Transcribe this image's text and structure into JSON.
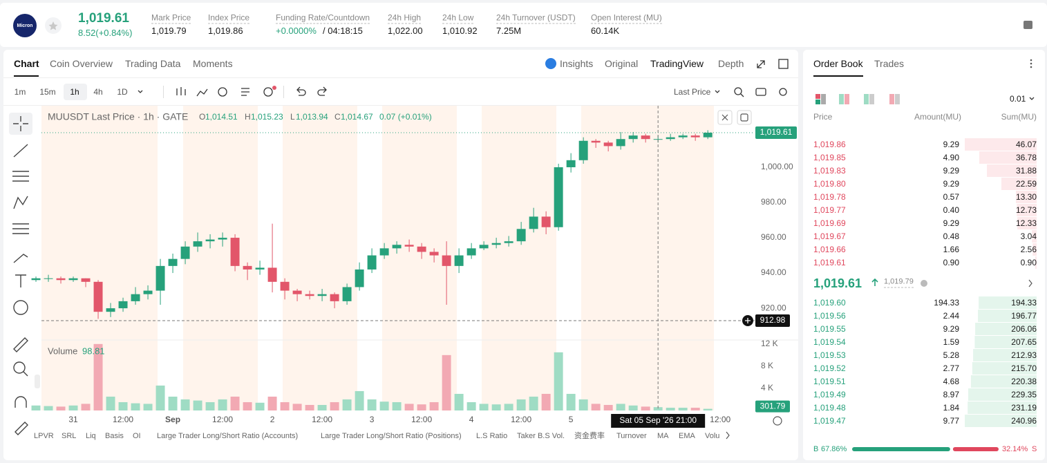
{
  "header": {
    "logo": "Micron",
    "last_price": "1,019.61",
    "change": "8.52(+0.84%)",
    "stats": [
      {
        "label": "Mark Price",
        "value": "1,019.79"
      },
      {
        "label": "Index Price",
        "value": "1,019.86"
      },
      {
        "label": "Funding Rate/Countdown",
        "value": "+0.0000%",
        "countdown": "/ 04:18:15"
      },
      {
        "label": "24h High",
        "value": "1,022.00"
      },
      {
        "label": "24h Low",
        "value": "1,010.92"
      },
      {
        "label": "24h Turnover (USDT)",
        "value": "7.25M"
      },
      {
        "label": "Open Interest (MU)",
        "value": "60.14K"
      }
    ]
  },
  "chart_tabs": [
    "Chart",
    "Coin Overview",
    "Trading Data",
    "Moments"
  ],
  "view_tabs": [
    "Insights",
    "Original",
    "TradingView",
    "Depth"
  ],
  "intervals": [
    "1m",
    "15m",
    "1h",
    "4h",
    "1D"
  ],
  "price_source": "Last Price",
  "chart_data": {
    "type": "candlestick",
    "legend": "MUUSDT Last Price · 1h · GATE",
    "ohlc_legend": [
      {
        "key": "O",
        "value": "1,014.51"
      },
      {
        "key": "H",
        "value": "1,015.23"
      },
      {
        "key": "L",
        "value": "1,013.94"
      },
      {
        "key": "C",
        "value": "1,014.67"
      }
    ],
    "change": "0.07 (+0.01%)",
    "x": [
      -9,
      -6,
      -3,
      0,
      3,
      6,
      9,
      12,
      15,
      18,
      21,
      24,
      27,
      30,
      33,
      36,
      39,
      42,
      45,
      48,
      51,
      54,
      57,
      60,
      63,
      66,
      69,
      72,
      75,
      78,
      81,
      84,
      87,
      90,
      93,
      96,
      99,
      102,
      105,
      108,
      111,
      114,
      117,
      120,
      123,
      126,
      129,
      132,
      135,
      138,
      141,
      144,
      147,
      150,
      153
    ],
    "open": [
      936,
      937,
      937,
      936,
      937,
      935,
      918,
      920,
      924,
      928,
      930,
      944,
      948,
      955,
      958,
      959,
      960,
      944,
      942,
      943,
      935,
      930,
      928,
      927,
      928,
      924,
      932,
      942,
      950,
      954,
      956,
      955,
      952,
      950,
      944,
      950,
      954,
      956,
      957,
      958,
      965,
      972,
      966,
      1000,
      1004,
      1015,
      1014,
      1012,
      1016,
      1018,
      1016,
      1016,
      1017,
      1018,
      1017
    ],
    "high": [
      938,
      939,
      938,
      938,
      937,
      936,
      923,
      926,
      932,
      933,
      948,
      951,
      958,
      963,
      962,
      963,
      962,
      946,
      947,
      968,
      937,
      931,
      930,
      931,
      929,
      934,
      946,
      954,
      957,
      958,
      959,
      957,
      954,
      958,
      954,
      957,
      958,
      960,
      961,
      969,
      977,
      975,
      1002,
      1008,
      1017,
      1016,
      1015,
      1020,
      1020,
      1019,
      1018,
      1019,
      1019,
      1019,
      1021
    ],
    "low": [
      935,
      935,
      934,
      935,
      932,
      914,
      915,
      918,
      922,
      925,
      922,
      940,
      945,
      952,
      954,
      955,
      941,
      936,
      939,
      929,
      925,
      924,
      925,
      924,
      920,
      922,
      930,
      940,
      948,
      951,
      952,
      948,
      946,
      922,
      940,
      948,
      953,
      954,
      955,
      956,
      963,
      962,
      964,
      997,
      1002,
      1011,
      1009,
      1010,
      1014,
      1014,
      1014,
      1015,
      1016,
      1015,
      1016
    ],
    "close": [
      937,
      937,
      936,
      937,
      935,
      918,
      920,
      924,
      928,
      930,
      944,
      948,
      955,
      958,
      959,
      960,
      944,
      942,
      943,
      935,
      930,
      928,
      927,
      928,
      924,
      932,
      942,
      950,
      954,
      956,
      955,
      952,
      950,
      944,
      950,
      954,
      956,
      957,
      958,
      965,
      972,
      966,
      1000,
      1004,
      1015,
      1014,
      1012,
      1016,
      1018,
      1016,
      1016,
      1017,
      1018,
      1017,
      1019.61
    ],
    "colors": {
      "up": "#26a17b",
      "down": "#e2566a",
      "volume_up": "#9fdcc4",
      "volume_down": "#f2a9b3"
    },
    "xlim": [
      -7.67,
      164.3
    ],
    "xticks": [
      {
        "value": 0,
        "label": "31"
      },
      {
        "value": 12,
        "label": "12:00"
      },
      {
        "value": 24,
        "label": "Sep"
      },
      {
        "value": 36,
        "label": "12:00"
      },
      {
        "value": 48,
        "label": "2"
      },
      {
        "value": 60,
        "label": "12:00"
      },
      {
        "value": 72,
        "label": "3"
      },
      {
        "value": 84,
        "label": "12:00"
      },
      {
        "value": 96,
        "label": "4"
      },
      {
        "value": 108,
        "label": "12:00"
      },
      {
        "value": 120,
        "label": "5"
      },
      {
        "value": 156,
        "label": "12:00"
      }
    ],
    "ylim": [
      902,
      1034.9
    ],
    "yticks": [
      {
        "value": 920,
        "label": "920.00"
      },
      {
        "value": 940,
        "label": "940.00"
      },
      {
        "value": 960,
        "label": "960.00"
      },
      {
        "value": 980,
        "label": "980.00"
      },
      {
        "value": 1000,
        "label": "1,000.00"
      }
    ],
    "last_price": {
      "value": 1019.61,
      "label": "1,019.61"
    },
    "crosshair": {
      "x": 141,
      "price": {
        "value": 912.98,
        "label": "912.98"
      },
      "label": "Sat 05 Sep '26 21:00"
    },
    "volume": {
      "title": "Volume",
      "hover_value": 98.81,
      "values": [
        900,
        800,
        700,
        900,
        1200,
        12000,
        2500,
        1500,
        1300,
        1200,
        4500,
        2500,
        2000,
        1800,
        1500,
        2000,
        2500,
        1500,
        1400,
        2500,
        1500,
        1200,
        1000,
        1000,
        1500,
        2000,
        3500,
        2000,
        1600,
        1500,
        1200,
        1100,
        1500,
        10000,
        3000,
        1500,
        1200,
        1100,
        1200,
        2000,
        2500,
        3000,
        10500,
        3000,
        2000,
        1200,
        1000,
        1200,
        900,
        700,
        600,
        500,
        500,
        500,
        301.79
      ],
      "ylim": [
        0,
        12600
      ],
      "yticks": [
        {
          "value": 4000,
          "label": "4 K"
        },
        {
          "value": 8000,
          "label": "8 K"
        },
        {
          "value": 12000,
          "label": "12 K"
        }
      ],
      "last": {
        "value": 301.79,
        "label": "301.79"
      }
    }
  },
  "indicators": [
    "LPVR",
    "SRL",
    "Liq",
    "Basis",
    "OI",
    "Large Trader Long/Short Ratio (Accounts)",
    "Large Trader Long/Short Ratio (Positions)",
    "L.S Ratio",
    "Taker B.S Vol.",
    "资金费率",
    "Turnover",
    "MA",
    "EMA",
    "Volu"
  ],
  "order_book": {
    "tabs": [
      "Order Book",
      "Trades"
    ],
    "precision": "0.01",
    "columns": [
      "Price",
      "Amount(MU)",
      "Sum(MU)"
    ],
    "asks": [
      [
        "1,019.86",
        "9.29",
        "46.07"
      ],
      [
        "1,019.85",
        "4.90",
        "36.78"
      ],
      [
        "1,019.83",
        "9.29",
        "31.88"
      ],
      [
        "1,019.80",
        "9.29",
        "22.59"
      ],
      [
        "1,019.78",
        "0.57",
        "13.30"
      ],
      [
        "1,019.77",
        "0.40",
        "12.73"
      ],
      [
        "1,019.69",
        "9.29",
        "12.33"
      ],
      [
        "1,019.67",
        "0.48",
        "3.04"
      ],
      [
        "1,019.66",
        "1.66",
        "2.56"
      ],
      [
        "1,019.61",
        "0.90",
        "0.90"
      ]
    ],
    "mid_price": "1,019.61",
    "mark_price": "1,019.79",
    "bids": [
      [
        "1,019.60",
        "194.33",
        "194.33"
      ],
      [
        "1,019.56",
        "2.44",
        "196.77"
      ],
      [
        "1,019.55",
        "9.29",
        "206.06"
      ],
      [
        "1,019.54",
        "1.59",
        "207.65"
      ],
      [
        "1,019.53",
        "5.28",
        "212.93"
      ],
      [
        "1,019.52",
        "2.77",
        "215.70"
      ],
      [
        "1,019.51",
        "4.68",
        "220.38"
      ],
      [
        "1,019.49",
        "8.97",
        "229.35"
      ],
      [
        "1,019.48",
        "1.84",
        "231.19"
      ],
      [
        "1,019.47",
        "9.77",
        "240.96"
      ]
    ],
    "buy_label": "B",
    "buy_ratio": "67.86%",
    "sell_ratio": "32.14%",
    "sell_label": "S"
  }
}
